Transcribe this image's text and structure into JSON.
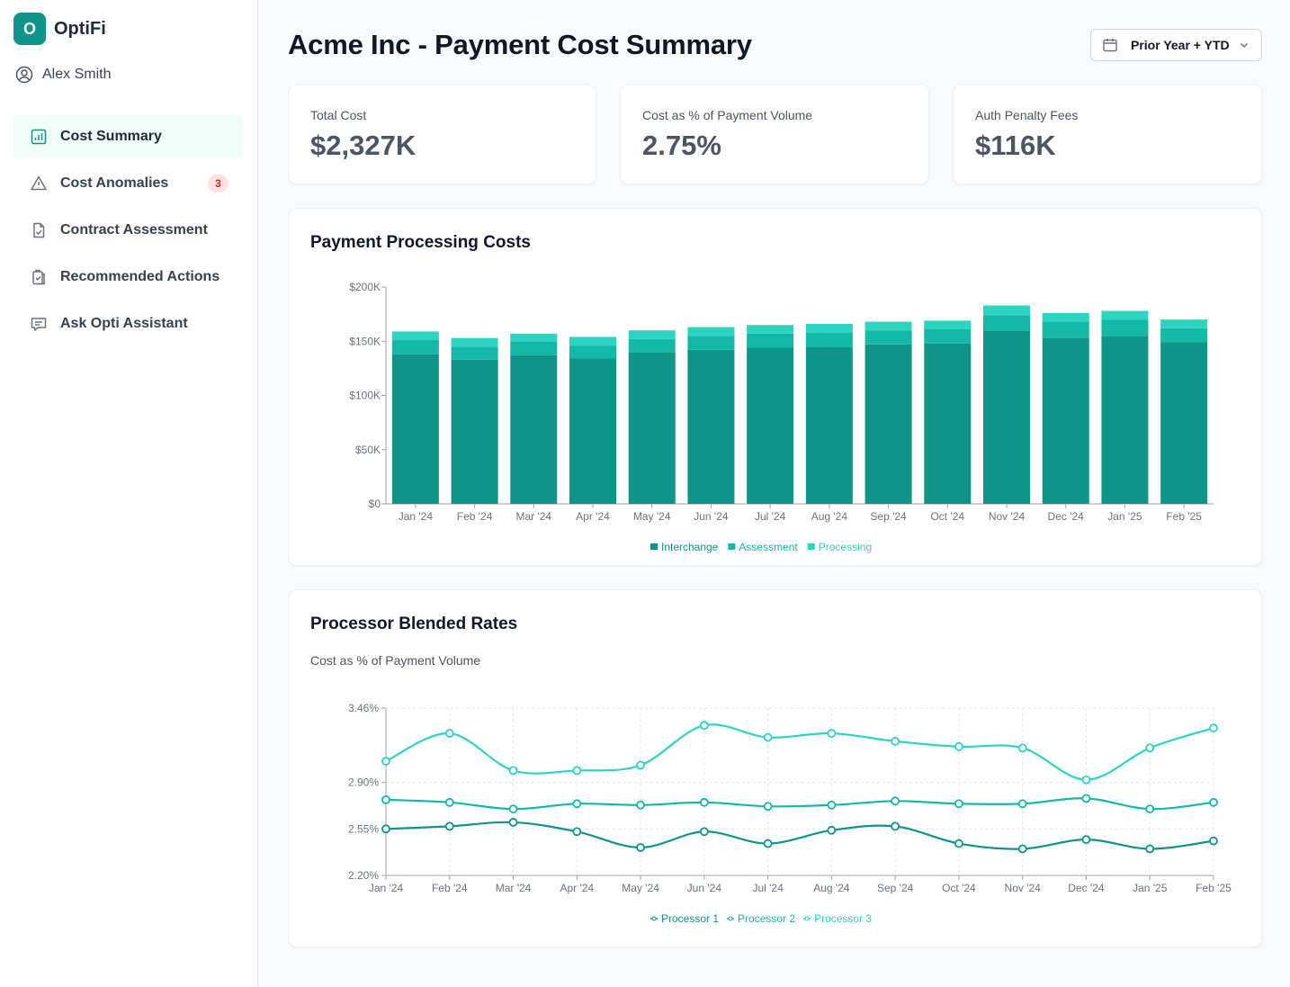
{
  "app": {
    "logo_letter": "O",
    "name": "OptiFi"
  },
  "user": {
    "name": "Alex Smith",
    "icon": "user-circle-icon"
  },
  "nav": [
    {
      "label": "Cost Summary",
      "icon": "bar-chart-icon",
      "active": true
    },
    {
      "label": "Cost Anomalies",
      "icon": "warning-triangle-icon",
      "badge": "3"
    },
    {
      "label": "Contract Assessment",
      "icon": "document-check-icon"
    },
    {
      "label": "Recommended Actions",
      "icon": "clipboard-icon"
    },
    {
      "label": "Ask Opti Assistant",
      "icon": "chat-icon"
    }
  ],
  "header": {
    "title": "Acme Inc - Payment Cost Summary",
    "period": "Prior Year + YTD"
  },
  "kpis": [
    {
      "label": "Total Cost",
      "value": "$2,327K"
    },
    {
      "label": "Cost as % of Payment Volume",
      "value": "2.75%"
    },
    {
      "label": "Auth Penalty Fees",
      "value": "$116K"
    }
  ],
  "colors": {
    "accent": "#0f9488",
    "interchange": "#0f9488",
    "assessment": "#14b8a6",
    "processing": "#2dd4bf",
    "p1": "#0f9488",
    "p2": "#14b8a6",
    "p3": "#2dd4bf"
  },
  "chart_data": [
    {
      "type": "bar",
      "stacked": true,
      "title": "Payment Processing Costs",
      "categories": [
        "Jan '24",
        "Feb '24",
        "Mar '24",
        "Apr '24",
        "May '24",
        "Jun '24",
        "Jul '24",
        "Aug '24",
        "Sep '24",
        "Oct '24",
        "Nov '24",
        "Dec '24",
        "Jan '25",
        "Feb '25"
      ],
      "series": [
        {
          "name": "Interchange",
          "values": [
            138,
            133,
            137,
            134,
            140,
            142,
            144,
            145,
            147,
            148,
            160,
            153,
            155,
            149
          ]
        },
        {
          "name": "Assessment",
          "values": [
            13,
            12,
            13,
            12,
            12,
            13,
            13,
            13,
            13,
            13,
            14,
            15,
            15,
            13
          ]
        },
        {
          "name": "Processing",
          "values": [
            8,
            8,
            7,
            8,
            8,
            8,
            8,
            8,
            8,
            8,
            9,
            8,
            8,
            8
          ]
        }
      ],
      "yticks": [
        "$0",
        "$50K",
        "$100K",
        "$150K",
        "$200K"
      ],
      "ylim": [
        0,
        200
      ],
      "legend": "bottom"
    },
    {
      "type": "line",
      "title": "Processor Blended Rates",
      "subtitle": "Cost as % of Payment Volume",
      "categories": [
        "Jan '24",
        "Feb '24",
        "Mar '24",
        "Apr '24",
        "May '24",
        "Jun '24",
        "Jul '24",
        "Aug '24",
        "Sep '24",
        "Oct '24",
        "Nov '24",
        "Dec '24",
        "Jan '25",
        "Feb '25"
      ],
      "series": [
        {
          "name": "Processor 1",
          "values": [
            2.55,
            2.57,
            2.6,
            2.53,
            2.41,
            2.53,
            2.44,
            2.54,
            2.57,
            2.44,
            2.4,
            2.47,
            2.4,
            2.46
          ]
        },
        {
          "name": "Processor 2",
          "values": [
            2.77,
            2.75,
            2.7,
            2.74,
            2.73,
            2.75,
            2.72,
            2.73,
            2.76,
            2.74,
            2.74,
            2.78,
            2.7,
            2.75
          ]
        },
        {
          "name": "Processor 3",
          "values": [
            3.06,
            3.27,
            2.99,
            2.99,
            3.03,
            3.33,
            3.24,
            3.27,
            3.21,
            3.17,
            3.16,
            2.92,
            3.16,
            3.31
          ]
        }
      ],
      "yticks": [
        "2.20%",
        "2.55%",
        "2.90%",
        "3.46%"
      ],
      "ylim": [
        2.2,
        3.46
      ],
      "grid": true,
      "legend": "bottom"
    }
  ]
}
